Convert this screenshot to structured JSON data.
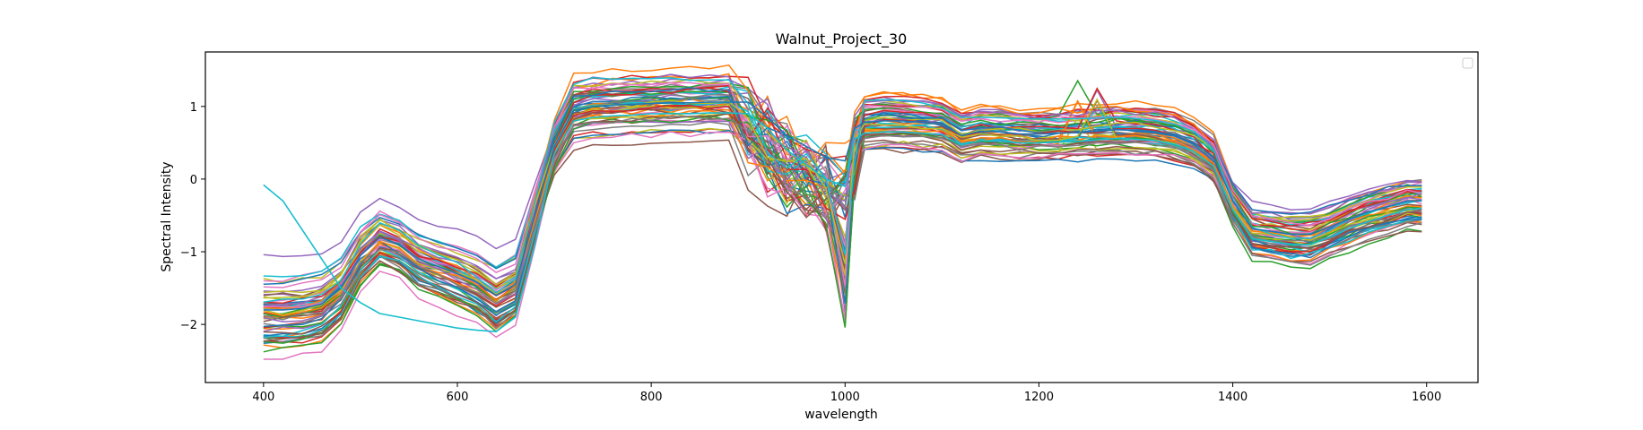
{
  "chart_data": {
    "type": "line",
    "title": "Walnut_Project_30",
    "xlabel": "wavelength",
    "ylabel": "Spectral Intensity",
    "xlim": [
      340,
      1653
    ],
    "ylim": [
      -2.8,
      1.75
    ],
    "x_ticks": [
      400,
      600,
      800,
      1000,
      1200,
      1400,
      1600
    ],
    "y_ticks": [
      -2,
      -1,
      0,
      1
    ],
    "x_tick_labels": [
      "400",
      "600",
      "800",
      "1000",
      "1200",
      "1400",
      "1600"
    ],
    "y_tick_labels": [
      "−2",
      "−1",
      "0",
      "1"
    ],
    "legend": "top-right",
    "legend_entries": [],
    "grid": false,
    "x": [
      400,
      420,
      440,
      460,
      480,
      500,
      520,
      540,
      560,
      580,
      600,
      620,
      640,
      660,
      680,
      700,
      720,
      740,
      760,
      780,
      800,
      820,
      840,
      860,
      880,
      900,
      920,
      940,
      960,
      980,
      1000,
      1010,
      1020,
      1040,
      1060,
      1080,
      1100,
      1120,
      1140,
      1160,
      1180,
      1200,
      1220,
      1240,
      1260,
      1280,
      1300,
      1320,
      1340,
      1360,
      1380,
      1400,
      1420,
      1440,
      1460,
      1480,
      1500,
      1520,
      1540,
      1560,
      1580,
      1595
    ],
    "series_count": 60,
    "representative_series": [
      {
        "name": "",
        "color": "#1f77b4",
        "values": [
          -1.8,
          -1.8,
          -1.78,
          -1.72,
          -1.5,
          -1.05,
          -0.8,
          -0.9,
          -1.1,
          -1.2,
          -1.3,
          -1.42,
          -1.6,
          -1.45,
          -0.5,
          0.45,
          0.95,
          1.0,
          1.02,
          1.03,
          1.04,
          1.05,
          1.05,
          1.06,
          1.06,
          1.06,
          0.85,
          0.6,
          0.45,
          0.3,
          0.25,
          0.7,
          0.78,
          0.8,
          0.8,
          0.78,
          0.76,
          0.6,
          0.66,
          0.65,
          0.62,
          0.62,
          0.63,
          0.64,
          0.66,
          0.68,
          0.67,
          0.65,
          0.6,
          0.5,
          0.3,
          -0.3,
          -0.68,
          -0.72,
          -0.76,
          -0.76,
          -0.66,
          -0.55,
          -0.45,
          -0.38,
          -0.3,
          -0.3
        ]
      },
      {
        "name": "",
        "color": "#17becf",
        "values": [
          -0.08,
          -0.3,
          -0.7,
          -1.1,
          -1.5,
          -1.7,
          -1.85,
          -1.9,
          -1.95,
          -2.0,
          -2.05,
          -2.08,
          -2.1,
          -1.9,
          -0.9,
          0.35,
          0.8,
          0.85,
          0.87,
          0.88,
          0.9,
          0.9,
          0.9,
          0.91,
          0.91,
          0.9,
          0.7,
          0.4,
          0.2,
          0.0,
          -0.1,
          0.55,
          0.63,
          0.65,
          0.65,
          0.63,
          0.61,
          0.47,
          0.53,
          0.52,
          0.5,
          0.5,
          0.51,
          0.52,
          0.54,
          0.56,
          0.55,
          0.53,
          0.48,
          0.38,
          0.18,
          -0.42,
          -0.82,
          -0.86,
          -0.9,
          -0.9,
          -0.8,
          -0.68,
          -0.58,
          -0.5,
          -0.42,
          -0.4
        ]
      }
    ]
  }
}
